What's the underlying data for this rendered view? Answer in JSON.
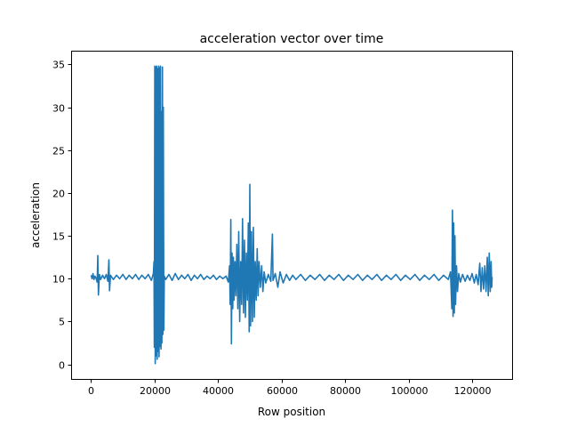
{
  "chart_data": {
    "type": "line",
    "title": "acceleration vector over time",
    "xlabel": "Row position",
    "ylabel": "acceleration",
    "xlim": [
      -6300,
      132600
    ],
    "ylim": [
      -1.7,
      36.6
    ],
    "xticks": [
      0,
      20000,
      40000,
      60000,
      80000,
      100000,
      120000
    ],
    "yticks": [
      0,
      5,
      10,
      15,
      20,
      25,
      30,
      35
    ],
    "grid": false,
    "legend": "none",
    "color": "#1f77b4",
    "series": [
      {
        "points": [
          [
            0,
            10.4
          ],
          [
            300,
            10.0
          ],
          [
            600,
            10.6
          ],
          [
            900,
            9.9
          ],
          [
            1200,
            10.3
          ],
          [
            1500,
            10.1
          ],
          [
            1900,
            9.6
          ],
          [
            2100,
            12.7
          ],
          [
            2300,
            8.1
          ],
          [
            2600,
            10.5
          ],
          [
            3000,
            9.9
          ],
          [
            3600,
            10.4
          ],
          [
            4200,
            10.0
          ],
          [
            4800,
            10.5
          ],
          [
            5300,
            9.7
          ],
          [
            5600,
            12.2
          ],
          [
            5800,
            8.6
          ],
          [
            6100,
            10.4
          ],
          [
            7000,
            9.9
          ],
          [
            8000,
            10.4
          ],
          [
            9000,
            10.0
          ],
          [
            10000,
            10.5
          ],
          [
            11000,
            9.9
          ],
          [
            12000,
            10.4
          ],
          [
            13000,
            10.0
          ],
          [
            14000,
            10.5
          ],
          [
            15000,
            9.9
          ],
          [
            16000,
            10.4
          ],
          [
            17000,
            10.0
          ],
          [
            18000,
            10.5
          ],
          [
            19000,
            9.8
          ],
          [
            19600,
            10.6
          ],
          [
            19800,
            12.0
          ],
          [
            19900,
            2.0
          ],
          [
            20050,
            34.8
          ],
          [
            20200,
            0.1
          ],
          [
            20350,
            34.7
          ],
          [
            20500,
            1.0
          ],
          [
            20650,
            34.8
          ],
          [
            20800,
            0.6
          ],
          [
            20950,
            34.5
          ],
          [
            21100,
            1.5
          ],
          [
            21250,
            34.8
          ],
          [
            21400,
            0.9
          ],
          [
            21550,
            34.6
          ],
          [
            21700,
            2.1
          ],
          [
            21850,
            34.8
          ],
          [
            22000,
            1.8
          ],
          [
            22150,
            29.5
          ],
          [
            22300,
            2.5
          ],
          [
            22450,
            34.7
          ],
          [
            22600,
            3.5
          ],
          [
            22750,
            30.0
          ],
          [
            22900,
            4.0
          ],
          [
            23050,
            10.3
          ],
          [
            23500,
            9.9
          ],
          [
            24500,
            10.5
          ],
          [
            25500,
            9.8
          ],
          [
            26500,
            10.6
          ],
          [
            27500,
            9.9
          ],
          [
            28500,
            10.4
          ],
          [
            29500,
            10.0
          ],
          [
            30500,
            10.5
          ],
          [
            31500,
            9.8
          ],
          [
            32500,
            10.4
          ],
          [
            33500,
            10.0
          ],
          [
            34500,
            10.5
          ],
          [
            35500,
            9.9
          ],
          [
            36500,
            10.3
          ],
          [
            37500,
            10.0
          ],
          [
            38500,
            10.4
          ],
          [
            39500,
            9.9
          ],
          [
            40500,
            10.3
          ],
          [
            41500,
            10.0
          ],
          [
            42500,
            10.3
          ],
          [
            43200,
            9.6
          ],
          [
            43600,
            11.5
          ],
          [
            43800,
            7.0
          ],
          [
            44000,
            16.9
          ],
          [
            44200,
            2.4
          ],
          [
            44400,
            13.0
          ],
          [
            44600,
            6.5
          ],
          [
            44800,
            12.5
          ],
          [
            45000,
            7.5
          ],
          [
            45300,
            12.0
          ],
          [
            45600,
            8.0
          ],
          [
            45900,
            14.0
          ],
          [
            46200,
            6.5
          ],
          [
            46500,
            15.5
          ],
          [
            46800,
            5.0
          ],
          [
            47100,
            12.0
          ],
          [
            47400,
            7.0
          ],
          [
            47700,
            17.0
          ],
          [
            48000,
            6.0
          ],
          [
            48300,
            14.5
          ],
          [
            48600,
            5.5
          ],
          [
            48900,
            13.0
          ],
          [
            49200,
            7.5
          ],
          [
            49500,
            16.5
          ],
          [
            49800,
            3.8
          ],
          [
            50000,
            21.0
          ],
          [
            50200,
            4.5
          ],
          [
            50500,
            15.5
          ],
          [
            50800,
            5.0
          ],
          [
            51100,
            16.0
          ],
          [
            51400,
            5.5
          ],
          [
            51700,
            12.0
          ],
          [
            52000,
            7.5
          ],
          [
            52300,
            13.5
          ],
          [
            52600,
            8.0
          ],
          [
            52900,
            12.0
          ],
          [
            53300,
            9.0
          ],
          [
            53700,
            11.5
          ],
          [
            54100,
            8.5
          ],
          [
            54500,
            10.8
          ],
          [
            55000,
            9.5
          ],
          [
            55800,
            10.5
          ],
          [
            56600,
            9.7
          ],
          [
            57100,
            15.2
          ],
          [
            57300,
            9.8
          ],
          [
            58000,
            10.6
          ],
          [
            58800,
            9.0
          ],
          [
            59500,
            10.8
          ],
          [
            60500,
            9.5
          ],
          [
            61500,
            10.5
          ],
          [
            62500,
            9.8
          ],
          [
            63500,
            10.4
          ],
          [
            64500,
            9.9
          ],
          [
            66000,
            10.5
          ],
          [
            67500,
            9.8
          ],
          [
            69000,
            10.4
          ],
          [
            70500,
            9.9
          ],
          [
            72000,
            10.5
          ],
          [
            73500,
            9.8
          ],
          [
            75000,
            10.4
          ],
          [
            76500,
            9.9
          ],
          [
            78000,
            10.5
          ],
          [
            79500,
            9.8
          ],
          [
            81000,
            10.4
          ],
          [
            82500,
            9.9
          ],
          [
            84000,
            10.5
          ],
          [
            85500,
            9.8
          ],
          [
            87000,
            10.4
          ],
          [
            88500,
            9.9
          ],
          [
            90000,
            10.5
          ],
          [
            91500,
            9.8
          ],
          [
            93000,
            10.4
          ],
          [
            94500,
            9.9
          ],
          [
            96000,
            10.5
          ],
          [
            97500,
            9.8
          ],
          [
            99000,
            10.4
          ],
          [
            100500,
            9.9
          ],
          [
            102000,
            10.5
          ],
          [
            103500,
            9.8
          ],
          [
            105000,
            10.4
          ],
          [
            106500,
            9.9
          ],
          [
            108000,
            10.5
          ],
          [
            109500,
            9.8
          ],
          [
            111000,
            10.4
          ],
          [
            112500,
            9.9
          ],
          [
            113200,
            10.8
          ],
          [
            113600,
            6.5
          ],
          [
            113800,
            18.0
          ],
          [
            114000,
            5.6
          ],
          [
            114200,
            16.5
          ],
          [
            114400,
            6.0
          ],
          [
            114600,
            15.0
          ],
          [
            114800,
            7.0
          ],
          [
            115100,
            11.5
          ],
          [
            115400,
            8.5
          ],
          [
            115800,
            10.6
          ],
          [
            116300,
            9.6
          ],
          [
            117000,
            10.5
          ],
          [
            117800,
            9.7
          ],
          [
            118500,
            10.4
          ],
          [
            119300,
            9.8
          ],
          [
            120000,
            10.6
          ],
          [
            120700,
            9.5
          ],
          [
            121300,
            10.5
          ],
          [
            121900,
            9.3
          ],
          [
            122400,
            11.8
          ],
          [
            122800,
            8.5
          ],
          [
            123200,
            11.3
          ],
          [
            123600,
            8.8
          ],
          [
            124000,
            11.5
          ],
          [
            124400,
            8.5
          ],
          [
            124800,
            12.5
          ],
          [
            125100,
            8.0
          ],
          [
            125400,
            13.0
          ],
          [
            125700,
            8.5
          ],
          [
            126000,
            12.0
          ],
          [
            126200,
            9.0
          ],
          [
            126300,
            10.2
          ]
        ]
      }
    ]
  }
}
